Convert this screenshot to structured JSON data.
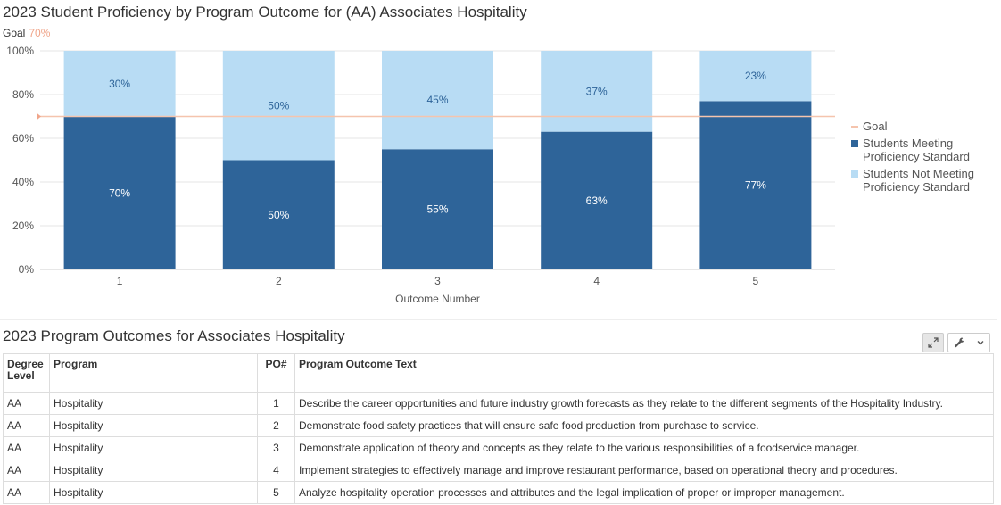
{
  "chart_data": {
    "type": "bar",
    "stacked": true,
    "title": "2023 Student Proficiency by Program Outcome for (AA) Associates Hospitality",
    "goal_label": "Goal",
    "goal_value_text": "70%",
    "goal": 70,
    "categories": [
      "1",
      "2",
      "3",
      "4",
      "5"
    ],
    "xlabel": "Outcome Number",
    "ylabel": "",
    "ylim": [
      0,
      100
    ],
    "yticks": [
      "0%",
      "20%",
      "40%",
      "60%",
      "80%",
      "100%"
    ],
    "grid": true,
    "legend_position": "right",
    "series": [
      {
        "name": "Students Meeting Proficiency Standard",
        "values": [
          70,
          50,
          55,
          63,
          77
        ],
        "labels": [
          "70%",
          "50%",
          "55%",
          "63%",
          "77%"
        ],
        "color": "#2e6499"
      },
      {
        "name": "Students Not Meeting Proficiency Standard",
        "values": [
          30,
          50,
          45,
          37,
          23
        ],
        "labels": [
          "30%",
          "50%",
          "45%",
          "37%",
          "23%"
        ],
        "color": "#b8dcf4"
      }
    ],
    "colors": {
      "goal_line": "#f5c4ad",
      "goal_text": "#f0a58a"
    }
  },
  "table": {
    "title": "2023 Program Outcomes for Associates Hospitality",
    "tools": {
      "expand_icon": "expand-icon",
      "settings_icon": "wrench-icon",
      "dropdown_icon": "chevron-down-icon"
    },
    "headers": {
      "degree": "Degree Level",
      "program": "Program",
      "po": "PO#",
      "text": "Program Outcome Text"
    },
    "rows": [
      {
        "degree": "AA",
        "program": "Hospitality",
        "po": "1",
        "text": "Describe the career opportunities and future industry growth forecasts as they relate to the different segments of the Hospitality Industry."
      },
      {
        "degree": "AA",
        "program": "Hospitality",
        "po": "2",
        "text": "Demonstrate food safety practices that will ensure safe food production from purchase to service."
      },
      {
        "degree": "AA",
        "program": "Hospitality",
        "po": "3",
        "text": "Demonstrate application of theory and concepts as they relate to the various responsibilities of a foodservice manager."
      },
      {
        "degree": "AA",
        "program": "Hospitality",
        "po": "4",
        "text": "Implement strategies to effectively manage and improve restaurant performance, based on operational theory and procedures."
      },
      {
        "degree": "AA",
        "program": "Hospitality",
        "po": "5",
        "text": "Analyze hospitality operation processes and attributes and the legal implication of proper or improper management."
      }
    ]
  }
}
